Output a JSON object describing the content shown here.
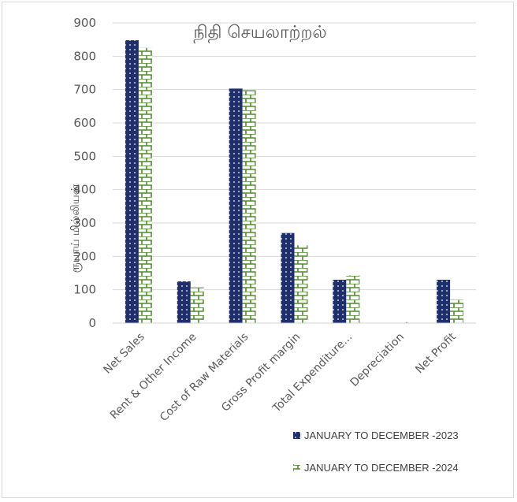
{
  "chart_data": {
    "type": "bar",
    "title": "நிதி  செயலாற்றல்",
    "ylabel": "ரூபாய் மில்லியன்",
    "xlabel": "",
    "ylim": [
      0,
      900
    ],
    "yticks": [
      0,
      100,
      200,
      300,
      400,
      500,
      600,
      700,
      800,
      900
    ],
    "grid": true,
    "legend_position": "bottom-right",
    "categories": [
      "Net Sales",
      "Rent & Other Income",
      "Cost of Raw Materials",
      "Gross Profit margin",
      "Total Expenditure...",
      "Depreciation",
      "Net Profit"
    ],
    "series": [
      {
        "name": "JANUARY TO DECEMBER -2023",
        "color": "#1f2f6b",
        "pattern": "dots",
        "values": [
          848,
          125,
          703,
          270,
          130,
          0,
          130
        ]
      },
      {
        "name": "JANUARY TO DECEMBER  -2024",
        "color": "#4f8a2e",
        "pattern": "bricks",
        "values": [
          825,
          107,
          698,
          233,
          143,
          3,
          70
        ]
      }
    ]
  }
}
